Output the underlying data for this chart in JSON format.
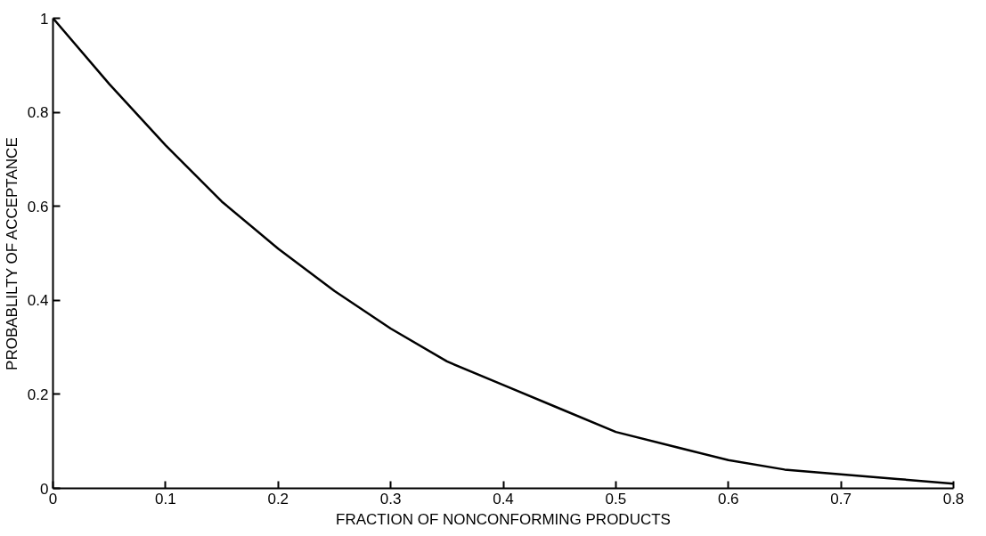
{
  "chart_data": {
    "type": "line",
    "xlabel": "FRACTION OF NONCONFORMING PRODUCTS",
    "ylabel": "PROBABLILTY OF ACCEPTANCE",
    "x": [
      0,
      0.05,
      0.1,
      0.15,
      0.2,
      0.25,
      0.3,
      0.35,
      0.4,
      0.45,
      0.5,
      0.55,
      0.6,
      0.65,
      0.7,
      0.75,
      0.8
    ],
    "series": [
      {
        "color": "#000000",
        "values": [
          1,
          0.86,
          0.73,
          0.61,
          0.51,
          0.42,
          0.34,
          0.27,
          0.22,
          0.17,
          0.12,
          0.09,
          0.06,
          0.04,
          0.03,
          0.02,
          0.01
        ]
      }
    ],
    "xlim": [
      0,
      0.8
    ],
    "ylim": [
      0,
      1
    ],
    "xticks": [
      0,
      0.1,
      0.2,
      0.3,
      0.4,
      0.5,
      0.6,
      0.7,
      0.8
    ],
    "yticks": [
      0,
      0.2,
      0.4,
      0.6,
      0.8,
      1
    ],
    "grid": false,
    "marker": "none",
    "line_style": "solid"
  }
}
